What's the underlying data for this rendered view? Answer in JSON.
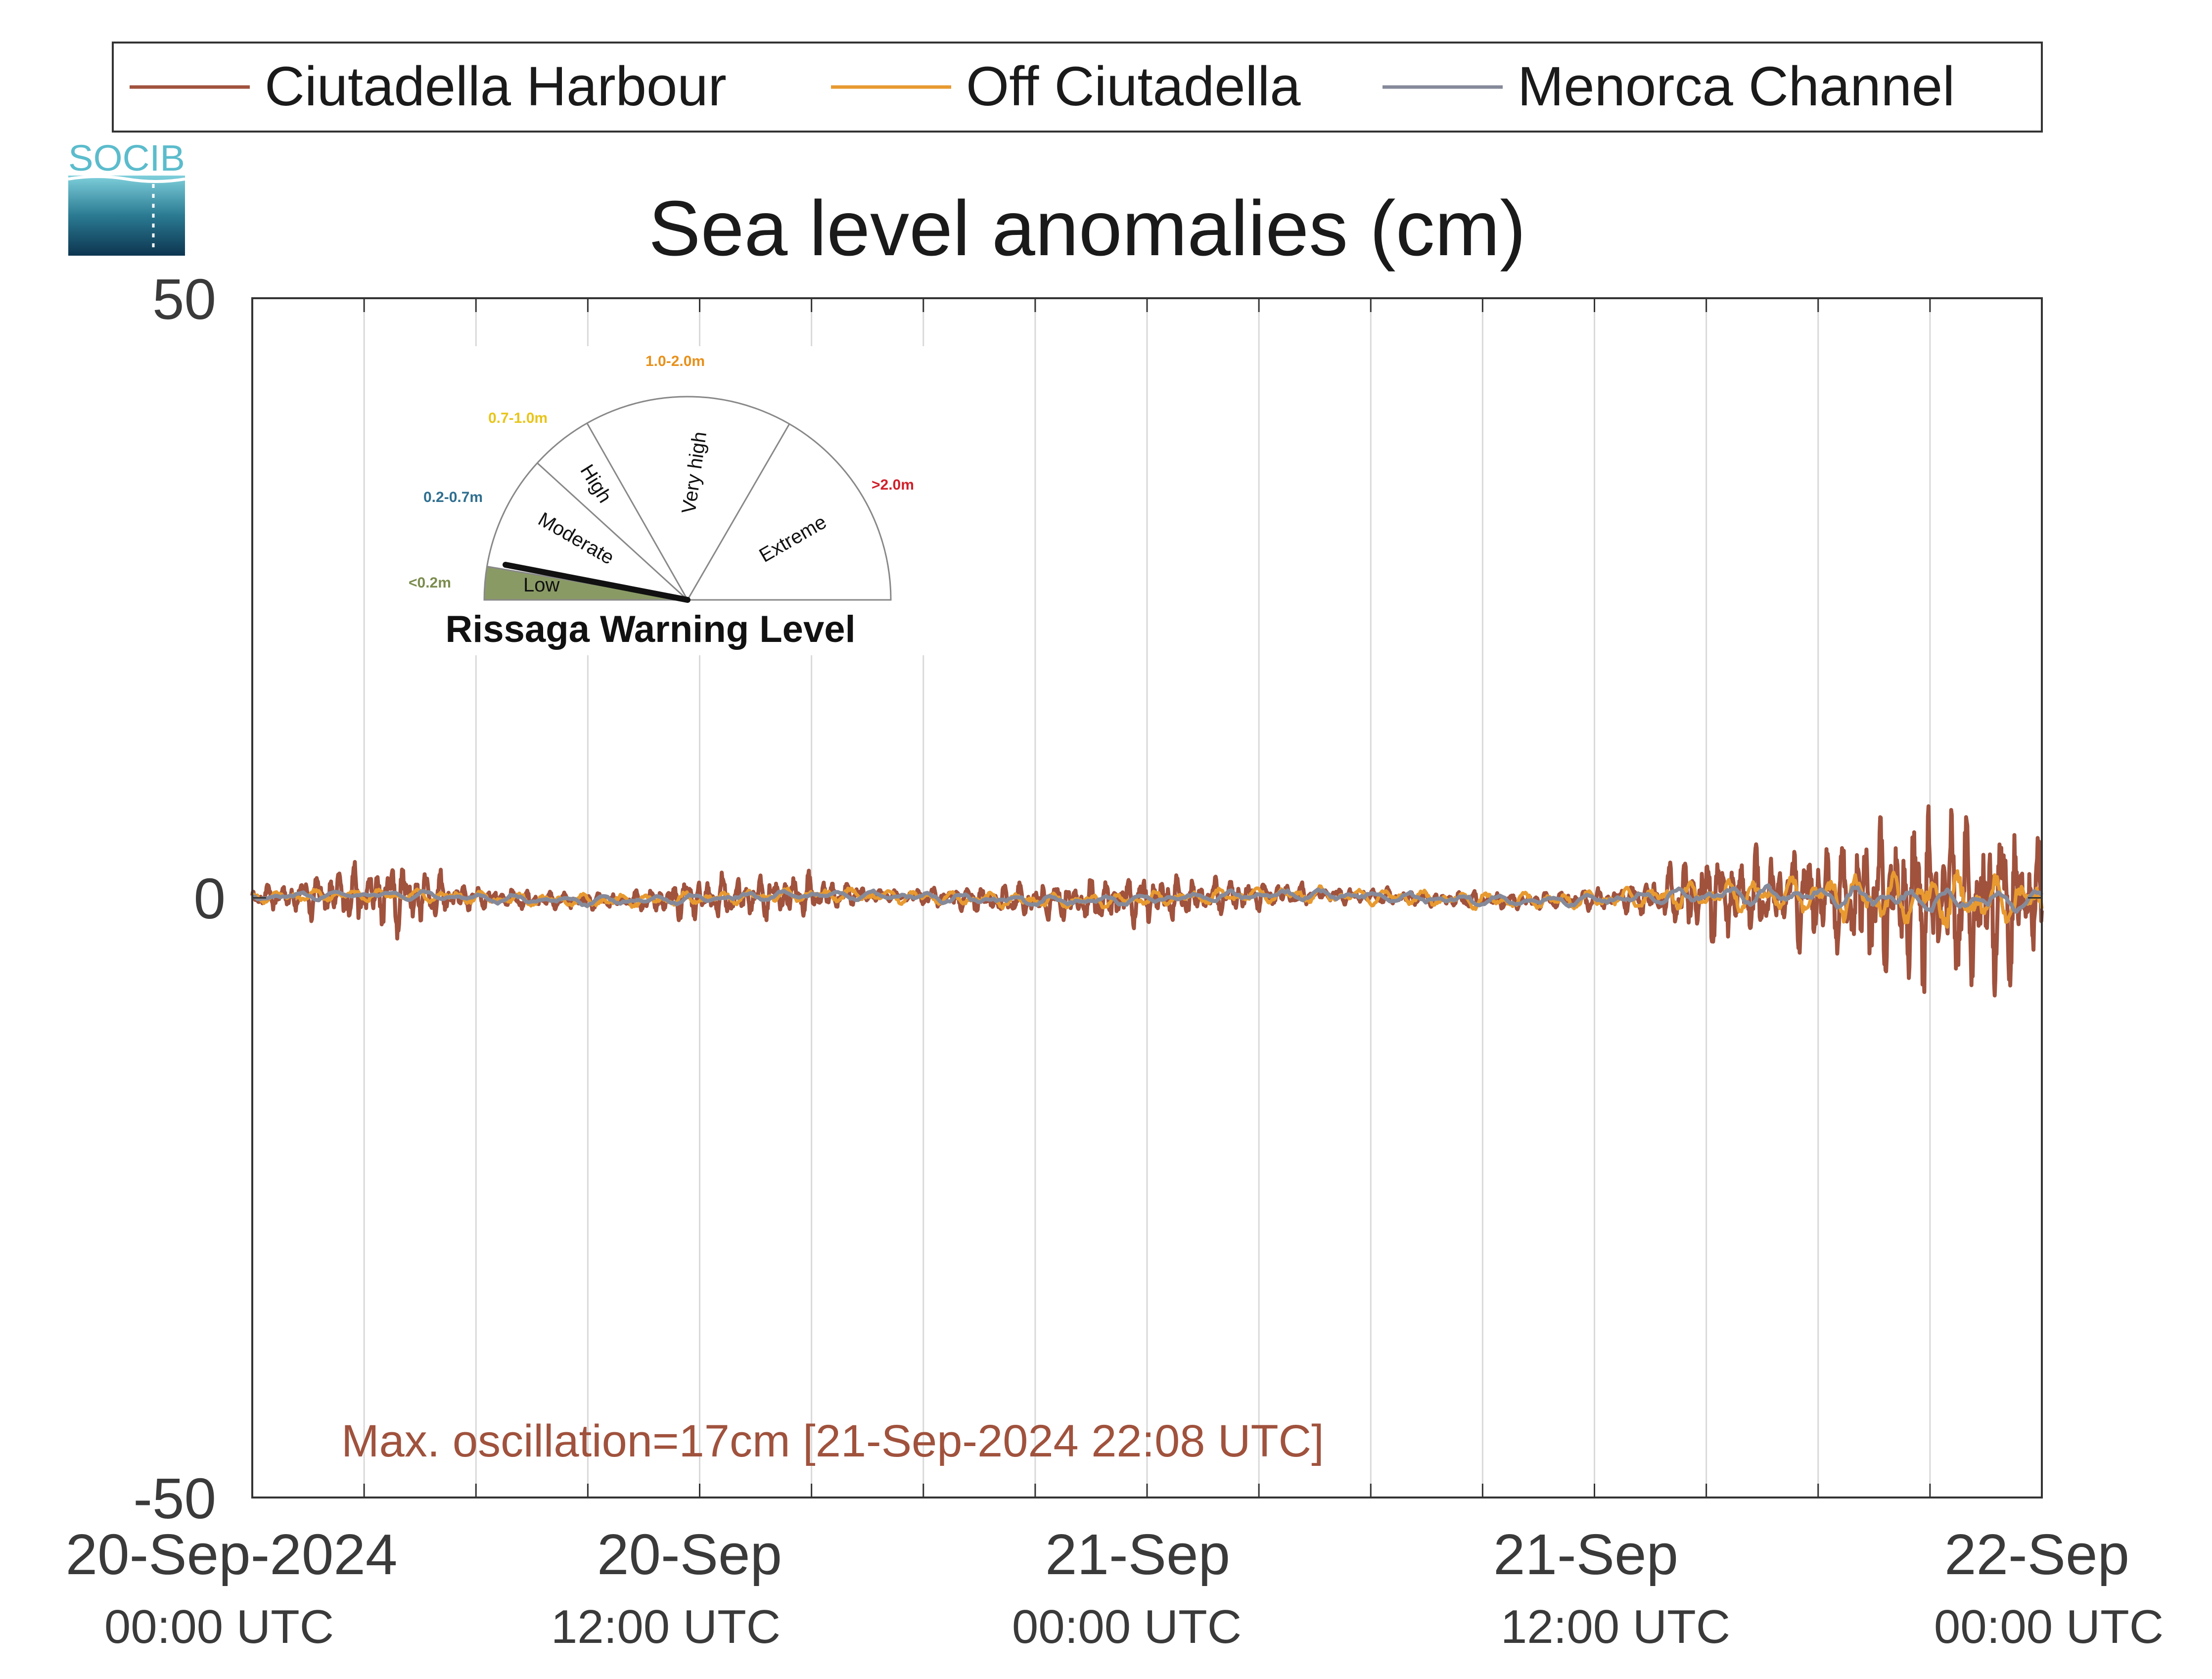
{
  "logo": {
    "text": "SOCIB",
    "color": "#5bbccc"
  },
  "gauge": {
    "title": "Rissaga Warning Level",
    "current_level": "Low",
    "categories": [
      {
        "label": "Low",
        "range": "<0.2m",
        "range_color": "#7b8c4e"
      },
      {
        "label": "Moderate",
        "range": "0.2-0.7m",
        "range_color": "#2f6f8f"
      },
      {
        "label": "High",
        "range": "0.7-1.0m",
        "range_color": "#e8c51a"
      },
      {
        "label": "Very high",
        "range": "1.0-2.0m",
        "range_color": "#e8901a"
      },
      {
        "label": "Extreme",
        "range": ">2.0m",
        "range_color": "#d0202a"
      }
    ]
  },
  "chart_data": {
    "type": "line",
    "title": "Sea level anomalies (cm)",
    "xlabel": "",
    "ylabel": "",
    "ylim": [
      -50,
      50
    ],
    "yticks": [
      "50",
      "0",
      "-50"
    ],
    "xlim": [
      "2024-09-20 00:00",
      "2024-09-22 00:00"
    ],
    "grid": "vertical",
    "legend": "top",
    "xticks": [
      {
        "time": "2024-09-20 00:00",
        "line1": "20-Sep-2024",
        "line2": "00:00 UTC"
      },
      {
        "time": "2024-09-20 12:00",
        "line1": "20-Sep",
        "line2": "12:00 UTC"
      },
      {
        "time": "2024-09-21 00:00",
        "line1": "21-Sep",
        "line2": "00:00 UTC"
      },
      {
        "time": "2024-09-21 12:00",
        "line1": "21-Sep",
        "line2": "12:00 UTC"
      },
      {
        "time": "2024-09-22 00:00",
        "line1": "22-Sep",
        "line2": "00:00 UTC"
      }
    ],
    "annotation": "Max. oscillation=17cm [21-Sep-2024 22:08 UTC]",
    "series": [
      {
        "name": "Ciutadella Harbour",
        "color": "#a0523d",
        "envelope": [
          {
            "time": "2024-09-20 00:00",
            "amplitude": 0.6
          },
          {
            "time": "2024-09-20 02:00",
            "amplitude": 1.8
          },
          {
            "time": "2024-09-20 04:00",
            "amplitude": 2.8
          },
          {
            "time": "2024-09-20 06:00",
            "amplitude": 0.8
          },
          {
            "time": "2024-09-20 10:00",
            "amplitude": 0.6
          },
          {
            "time": "2024-09-20 12:00",
            "amplitude": 1.7
          },
          {
            "time": "2024-09-20 15:00",
            "amplitude": 1.5
          },
          {
            "time": "2024-09-20 17:00",
            "amplitude": 0.4
          },
          {
            "time": "2024-09-20 21:00",
            "amplitude": 1.4
          },
          {
            "time": "2024-09-21 00:00",
            "amplitude": 1.9
          },
          {
            "time": "2024-09-21 03:00",
            "amplitude": 1.1
          },
          {
            "time": "2024-09-21 05:00",
            "amplitude": 0.6
          },
          {
            "time": "2024-09-21 10:00",
            "amplitude": 0.6
          },
          {
            "time": "2024-09-21 13:00",
            "amplitude": 1.0
          },
          {
            "time": "2024-09-21 15:00",
            "amplitude": 3.5
          },
          {
            "time": "2024-09-21 17:00",
            "amplitude": 3.2
          },
          {
            "time": "2024-09-21 19:00",
            "amplitude": 5.0
          },
          {
            "time": "2024-09-21 22:00",
            "amplitude": 7.5
          },
          {
            "time": "2024-09-22 00:00",
            "amplitude": 4.5
          }
        ]
      },
      {
        "name": "Off Ciutadella",
        "color": "#e89a30",
        "envelope": [
          {
            "time": "2024-09-20 00:00",
            "amplitude": 0.4
          },
          {
            "time": "2024-09-21 12:00",
            "amplitude": 0.6
          },
          {
            "time": "2024-09-21 18:00",
            "amplitude": 1.4
          },
          {
            "time": "2024-09-21 22:00",
            "amplitude": 2.0
          },
          {
            "time": "2024-09-22 00:00",
            "amplitude": 1.5
          }
        ]
      },
      {
        "name": "Menorca Channel",
        "color": "#858a9a",
        "envelope": [
          {
            "time": "2024-09-20 00:00",
            "amplitude": 0.3
          },
          {
            "time": "2024-09-21 12:00",
            "amplitude": 0.4
          },
          {
            "time": "2024-09-21 20:00",
            "amplitude": 0.8
          },
          {
            "time": "2024-09-22 00:00",
            "amplitude": 0.7
          }
        ]
      }
    ]
  }
}
